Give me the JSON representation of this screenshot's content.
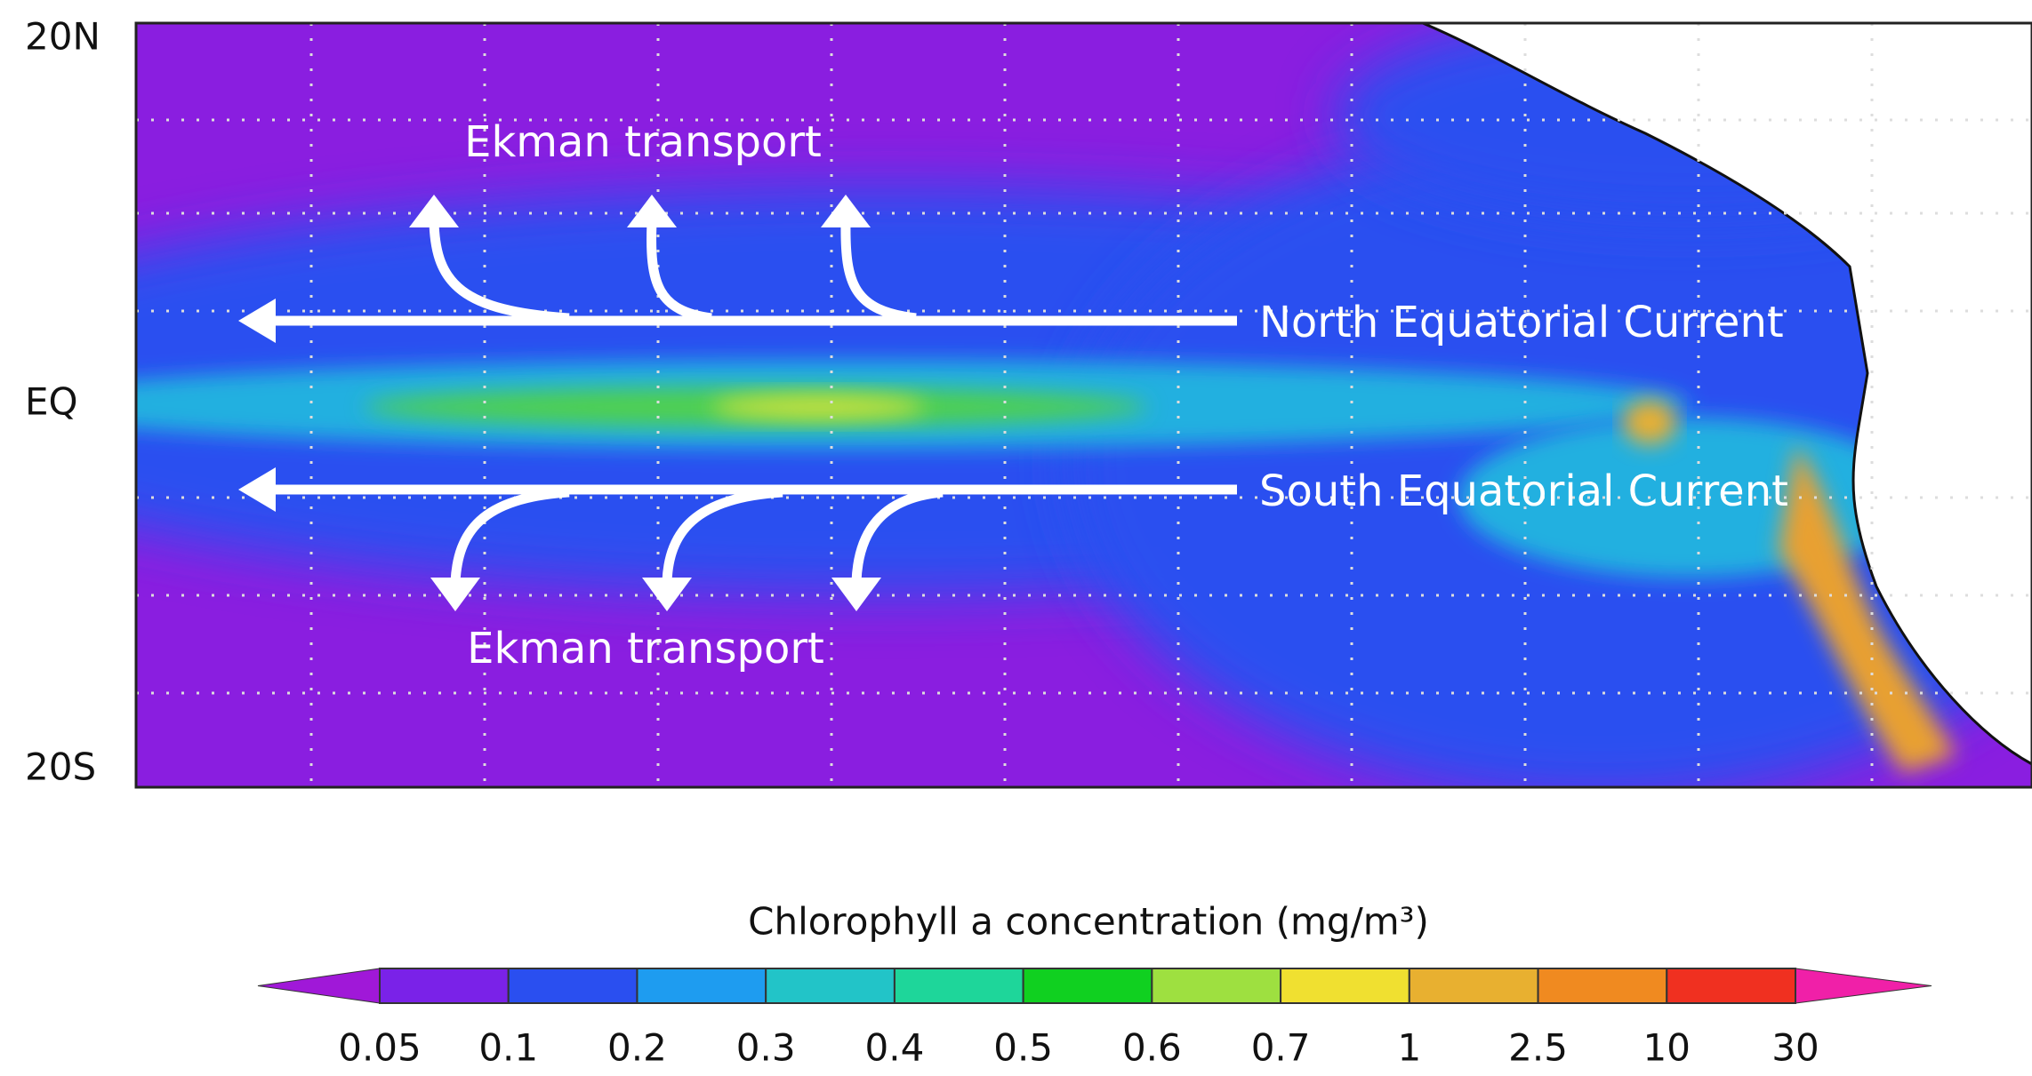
{
  "map": {
    "lat_labels": [
      "20N",
      "EQ",
      "20S"
    ],
    "annotations": {
      "north_ekman": "Ekman transport",
      "north_current": "North Equatorial Current",
      "south_current": "South Equatorial Current",
      "south_ekman": "Ekman transport"
    }
  },
  "colorbar": {
    "title": "Chlorophyll a concentration (mg/m³)",
    "labels": [
      "0.05",
      "0.1",
      "0.2",
      "0.3",
      "0.4",
      "0.5",
      "0.6",
      "0.7",
      "1",
      "2.5",
      "10",
      "30"
    ],
    "low_color": "#a018d8",
    "colors": [
      "#7a22e8",
      "#2a4ff0",
      "#1e9cf0",
      "#22c4c8",
      "#1ed69a",
      "#10d020",
      "#9ee040",
      "#f0e030",
      "#e8b030",
      "#f08a20",
      "#f03020"
    ],
    "high_color": "#f020a8"
  }
}
